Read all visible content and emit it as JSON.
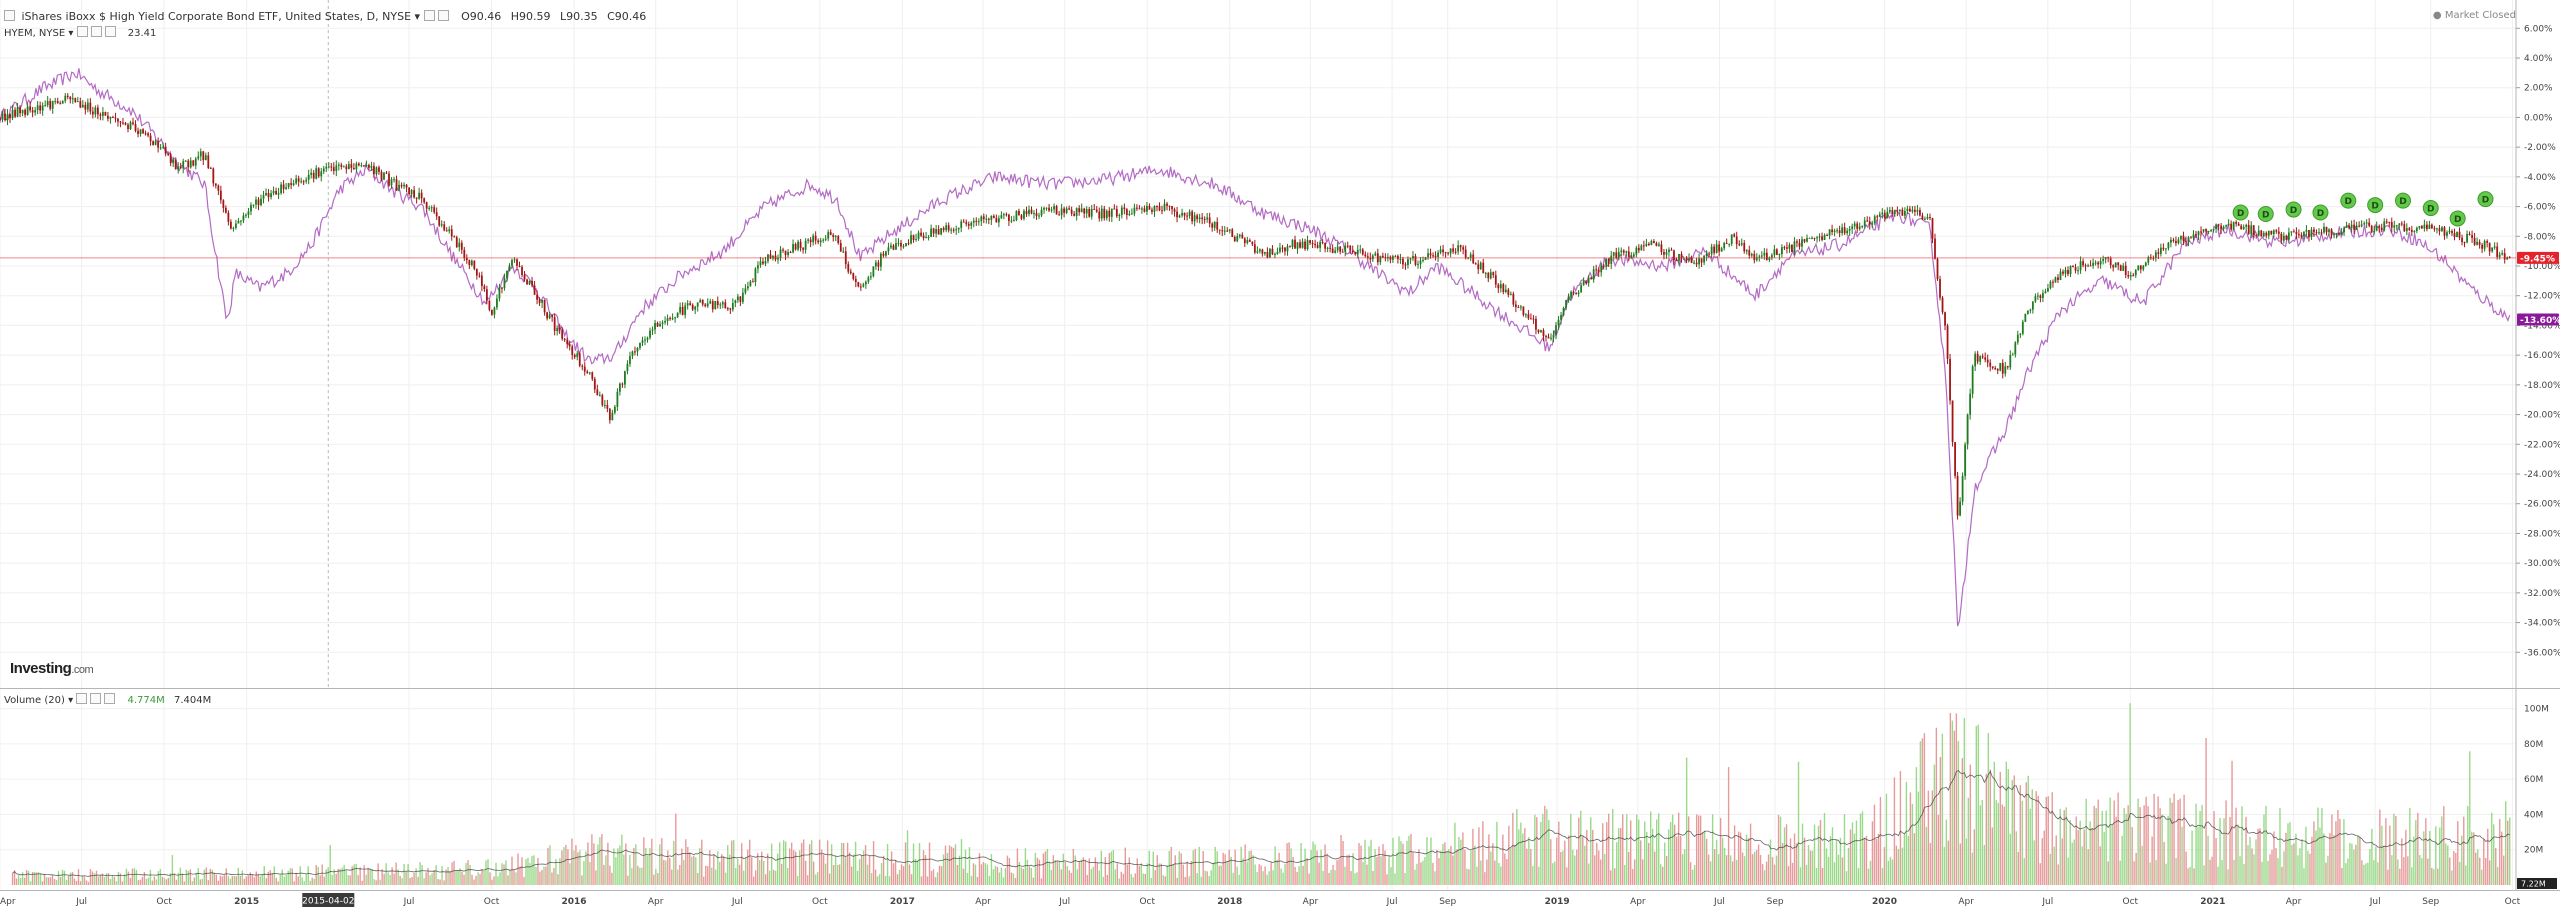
{
  "header": {
    "title": "iShares iBoxx $ High Yield Corporate Bond ETF, United States, D, NYSE",
    "open": "O90.46",
    "high": "H90.59",
    "low": "L90.35",
    "close": "C90.46",
    "compare_symbol": "HYEM, NYSE",
    "compare_value": "23.41",
    "market_status": "Market Closed",
    "brand_main": "Investing",
    "brand_suffix": ".com"
  },
  "volume_legend": {
    "label": "Volume (20)",
    "value1": "4.774M",
    "value2": "7.404M"
  },
  "crosshair_date": "2015-04-02",
  "last_value_tag": "7.22M",
  "colors": {
    "up": "#1e7b1e",
    "down": "#a31515",
    "compare": "#b36bc4",
    "vol_up": "#9ad98a",
    "vol_down": "#e79a9a",
    "last_price": "#e3242b",
    "compare_tag": "#8b1a9b",
    "dividend": "#63c94a"
  },
  "chart_data": [
    {
      "type": "line",
      "title": "iShares iBoxx $ High Yield Corporate Bond ETF (HYG) vs HYEM, percent change",
      "y_axis_ticks": [
        "6.00%",
        "4.00%",
        "2.00%",
        "0.00%",
        "-2.00%",
        "-4.00%",
        "-6.00%",
        "-8.00%",
        "-10.00%",
        "-12.00%",
        "-14.00%",
        "-16.00%",
        "-18.00%",
        "-20.00%",
        "-22.00%",
        "-24.00%",
        "-26.00%",
        "-28.00%",
        "-30.00%",
        "-32.00%",
        "-34.00%",
        "-36.00%"
      ],
      "ylim": [
        -38,
        7.5
      ],
      "y_log_scale": false,
      "grid": true,
      "x_tick_labels": [
        "Apr",
        "Jul",
        "Oct",
        "2015",
        "Jul",
        "Oct",
        "2016",
        "Apr",
        "Jul",
        "Oct",
        "2017",
        "Apr",
        "Jul",
        "Oct",
        "2018",
        "Apr",
        "Jul",
        "Sep",
        "2019",
        "Apr",
        "Jul",
        "Sep",
        "2020",
        "Apr",
        "Jul",
        "Oct",
        "2021",
        "Apr",
        "Jul",
        "Sep",
        "Oct"
      ],
      "x_range": [
        "2014-04",
        "2021-10"
      ],
      "series": [
        {
          "name": "iShares iBoxx $ High Yield Corporate Bond ETF",
          "style": "candlestick",
          "points": [
            [
              "2014-04-01",
              0.0
            ],
            [
              "2014-05-15",
              0.8
            ],
            [
              "2014-06-20",
              1.2
            ],
            [
              "2014-07-25",
              0.2
            ],
            [
              "2014-08-20",
              -0.5
            ],
            [
              "2014-09-25",
              -1.8
            ],
            [
              "2014-10-15",
              -3.5
            ],
            [
              "2014-11-15",
              -2.5
            ],
            [
              "2014-12-15",
              -7.5
            ],
            [
              "2015-01-15",
              -5.5
            ],
            [
              "2015-02-15",
              -4.5
            ],
            [
              "2015-03-15",
              -3.8
            ],
            [
              "2015-04-02",
              -3.5
            ],
            [
              "2015-05-15",
              -3.2
            ],
            [
              "2015-06-15",
              -4.5
            ],
            [
              "2015-07-15",
              -5.5
            ],
            [
              "2015-08-15",
              -7.8
            ],
            [
              "2015-09-15",
              -10.5
            ],
            [
              "2015-10-01",
              -13.0
            ],
            [
              "2015-10-25",
              -9.5
            ],
            [
              "2015-11-15",
              -11.5
            ],
            [
              "2015-12-15",
              -14.5
            ],
            [
              "2016-01-15",
              -17.0
            ],
            [
              "2016-02-11",
              -20.2
            ],
            [
              "2016-03-01",
              -16.5
            ],
            [
              "2016-04-01",
              -14.0
            ],
            [
              "2016-05-15",
              -12.5
            ],
            [
              "2016-06-27",
              -12.8
            ],
            [
              "2016-08-01",
              -9.5
            ],
            [
              "2016-09-15",
              -8.5
            ],
            [
              "2016-10-15",
              -7.8
            ],
            [
              "2016-11-15",
              -11.8
            ],
            [
              "2016-12-15",
              -8.8
            ],
            [
              "2017-02-15",
              -7.5
            ],
            [
              "2017-04-15",
              -6.8
            ],
            [
              "2017-06-15",
              -6.2
            ],
            [
              "2017-08-15",
              -6.5
            ],
            [
              "2017-10-15",
              -6.0
            ],
            [
              "2017-12-15",
              -7.2
            ],
            [
              "2018-02-10",
              -9.2
            ],
            [
              "2018-03-15",
              -8.5
            ],
            [
              "2018-05-15",
              -9.0
            ],
            [
              "2018-07-15",
              -9.8
            ],
            [
              "2018-09-15",
              -8.8
            ],
            [
              "2018-10-25",
              -11.0
            ],
            [
              "2018-12-24",
              -15.2
            ],
            [
              "2019-01-15",
              -12.0
            ],
            [
              "2019-03-01",
              -9.5
            ],
            [
              "2019-04-15",
              -8.6
            ],
            [
              "2019-06-01",
              -9.8
            ],
            [
              "2019-07-15",
              -8.2
            ],
            [
              "2019-08-10",
              -9.5
            ],
            [
              "2019-10-01",
              -8.5
            ],
            [
              "2019-12-15",
              -7.0
            ],
            [
              "2020-01-25",
              -6.2
            ],
            [
              "2020-02-21",
              -7.0
            ],
            [
              "2020-03-10",
              -15.0
            ],
            [
              "2020-03-23",
              -27.5
            ],
            [
              "2020-04-09",
              -16.0
            ],
            [
              "2020-05-15",
              -17.0
            ],
            [
              "2020-06-08",
              -13.0
            ],
            [
              "2020-07-15",
              -10.5
            ],
            [
              "2020-09-01",
              -9.5
            ],
            [
              "2020-10-01",
              -10.5
            ],
            [
              "2020-11-15",
              -8.5
            ],
            [
              "2021-01-15",
              -7.2
            ],
            [
              "2021-03-15",
              -8.0
            ],
            [
              "2021-05-15",
              -7.6
            ],
            [
              "2021-07-15",
              -7.3
            ],
            [
              "2021-09-01",
              -7.5
            ],
            [
              "2021-10-15",
              -8.2
            ],
            [
              "2021-11-28",
              -9.45
            ]
          ]
        },
        {
          "name": "HYEM, NYSE",
          "style": "line",
          "points": [
            [
              "2014-04-01",
              0.0
            ],
            [
              "2014-05-20",
              2.0
            ],
            [
              "2014-06-25",
              3.0
            ],
            [
              "2014-07-20",
              1.8
            ],
            [
              "2014-08-25",
              0.5
            ],
            [
              "2014-09-25",
              -1.5
            ],
            [
              "2014-10-15",
              -3.0
            ],
            [
              "2014-11-15",
              -4.5
            ],
            [
              "2014-12-10",
              -13.8
            ],
            [
              "2014-12-20",
              -10.5
            ],
            [
              "2015-01-15",
              -11.5
            ],
            [
              "2015-02-15",
              -10.5
            ],
            [
              "2015-03-15",
              -8.5
            ],
            [
              "2015-04-15",
              -4.8
            ],
            [
              "2015-05-15",
              -3.5
            ],
            [
              "2015-06-15",
              -5.0
            ],
            [
              "2015-07-15",
              -6.0
            ],
            [
              "2015-08-20",
              -9.5
            ],
            [
              "2015-09-25",
              -12.5
            ],
            [
              "2015-10-25",
              -10.0
            ],
            [
              "2015-11-20",
              -11.5
            ],
            [
              "2015-12-20",
              -14.5
            ],
            [
              "2016-01-20",
              -16.5
            ],
            [
              "2016-02-15",
              -16.0
            ],
            [
              "2016-03-15",
              -13.0
            ],
            [
              "2016-05-01",
              -10.5
            ],
            [
              "2016-06-15",
              -9.0
            ],
            [
              "2016-08-01",
              -6.0
            ],
            [
              "2016-09-20",
              -4.5
            ],
            [
              "2016-10-20",
              -5.5
            ],
            [
              "2016-11-15",
              -9.5
            ],
            [
              "2016-12-15",
              -8.0
            ],
            [
              "2017-02-15",
              -5.5
            ],
            [
              "2017-04-15",
              -4.0
            ],
            [
              "2017-06-15",
              -4.5
            ],
            [
              "2017-08-15",
              -4.2
            ],
            [
              "2017-10-15",
              -3.5
            ],
            [
              "2017-12-15",
              -4.5
            ],
            [
              "2018-02-10",
              -6.5
            ],
            [
              "2018-04-01",
              -7.5
            ],
            [
              "2018-05-15",
              -9.0
            ],
            [
              "2018-06-15",
              -10.5
            ],
            [
              "2018-07-20",
              -11.8
            ],
            [
              "2018-08-20",
              -10.0
            ],
            [
              "2018-10-25",
              -13.0
            ],
            [
              "2018-12-24",
              -15.5
            ],
            [
              "2019-01-15",
              -12.0
            ],
            [
              "2019-03-01",
              -9.5
            ],
            [
              "2019-05-01",
              -10.0
            ],
            [
              "2019-06-15",
              -9.0
            ],
            [
              "2019-08-10",
              -12.0
            ],
            [
              "2019-09-15",
              -9.5
            ],
            [
              "2019-11-15",
              -8.5
            ],
            [
              "2020-01-15",
              -6.5
            ],
            [
              "2020-02-21",
              -7.5
            ],
            [
              "2020-03-10",
              -18.0
            ],
            [
              "2020-03-23",
              -35.0
            ],
            [
              "2020-04-10",
              -25.0
            ],
            [
              "2020-05-15",
              -21.0
            ],
            [
              "2020-06-10",
              -17.0
            ],
            [
              "2020-07-15",
              -13.0
            ],
            [
              "2020-09-01",
              -11.0
            ],
            [
              "2020-10-15",
              -12.5
            ],
            [
              "2020-12-01",
              -8.5
            ],
            [
              "2021-01-15",
              -7.5
            ],
            [
              "2021-03-15",
              -8.5
            ],
            [
              "2021-05-15",
              -7.8
            ],
            [
              "2021-07-15",
              -7.5
            ],
            [
              "2021-08-15",
              -8.2
            ],
            [
              "2021-09-15",
              -9.5
            ],
            [
              "2021-10-15",
              -11.5
            ],
            [
              "2021-11-28",
              -13.6
            ]
          ]
        }
      ],
      "price_tags": [
        {
          "label": "-9.45%",
          "value": -9.45,
          "color": "#e3242b"
        },
        {
          "label": "-13.60%",
          "value": -13.6,
          "color": "#8b1a9b"
        }
      ],
      "dividend_markers": {
        "label": "D",
        "dates": [
          "2021-02-01",
          "2021-03-01",
          "2021-04-01",
          "2021-05-01",
          "2021-06-01",
          "2021-07-01",
          "2021-08-01",
          "2021-09-01",
          "2021-10-01",
          "2021-11-01"
        ],
        "values": [
          -6.4,
          -6.5,
          -6.2,
          -6.4,
          -5.6,
          -5.9,
          -5.6,
          -6.1,
          -6.8,
          -5.5
        ]
      }
    },
    {
      "type": "bar",
      "title": "Volume (20)",
      "y_axis_ticks": [
        "100M",
        "80M",
        "60M",
        "40M",
        "20M"
      ],
      "ylim": [
        0,
        110
      ],
      "unit": "M shares",
      "moving_average_period": 20,
      "volume_profile_by_month": [
        [
          "2014-04",
          5
        ],
        [
          "2014-10",
          6
        ],
        [
          "2015-04",
          7
        ],
        [
          "2015-10",
          9
        ],
        [
          "2016-01",
          18
        ],
        [
          "2016-06",
          15
        ],
        [
          "2016-11",
          16
        ],
        [
          "2017-06",
          12
        ],
        [
          "2017-12",
          13
        ],
        [
          "2018-06",
          16
        ],
        [
          "2018-12",
          27
        ],
        [
          "2019-06",
          24
        ],
        [
          "2019-12",
          25
        ],
        [
          "2020-03",
          65
        ],
        [
          "2020-06",
          35
        ],
        [
          "2020-12",
          30
        ],
        [
          "2021-06",
          25
        ],
        [
          "2021-10",
          28
        ]
      ],
      "last_volume": "7.22M"
    }
  ]
}
